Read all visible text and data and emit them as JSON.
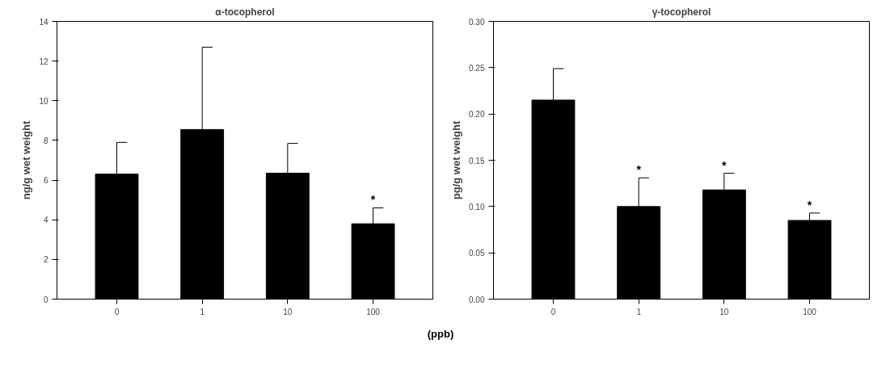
{
  "chart_data": [
    {
      "type": "bar",
      "title": "α-tocopherol",
      "ylabel": "ng/g wet weight",
      "xlabel": "(ppb)",
      "categories": [
        "0",
        "1",
        "10",
        "100"
      ],
      "values": [
        6.3,
        8.55,
        6.35,
        3.8
      ],
      "color": "#000000",
      "errors": [
        [
          6.3,
          7.9
        ],
        [
          8.55,
          12.7
        ],
        [
          6.35,
          7.85
        ],
        [
          3.8,
          4.6
        ]
      ],
      "ylim": [
        0,
        14
      ],
      "yticks": [
        0,
        2,
        4,
        6,
        8,
        10,
        12,
        14
      ],
      "annotations": [
        {
          "text": "*",
          "x": "100",
          "y": 4.6
        }
      ],
      "grid": false
    },
    {
      "type": "bar",
      "title": "γ-tocopherol",
      "ylabel": "pg/g wet weight",
      "categories": [
        "0",
        "1",
        "10",
        "100"
      ],
      "values": [
        0.215,
        0.1,
        0.118,
        0.085
      ],
      "color": "#000000",
      "errors": [
        [
          0.215,
          0.249
        ],
        [
          0.1,
          0.131
        ],
        [
          0.118,
          0.136
        ],
        [
          0.085,
          0.093
        ]
      ],
      "ylim": [
        0,
        0.3
      ],
      "yticks": [
        {
          "value": 0,
          "label": "0.00"
        },
        {
          "value": 0.05,
          "label": "0.05"
        },
        {
          "value": 0.1,
          "label": "0.10"
        },
        {
          "value": 0.15,
          "label": "0.15"
        },
        {
          "value": 0.2,
          "label": "0.20"
        },
        {
          "value": 0.25,
          "label": "0.25"
        },
        {
          "value": 0.3,
          "label": "0.30"
        }
      ],
      "annotations": [
        {
          "text": "*",
          "x": "1",
          "y": 0.131
        },
        {
          "text": "*",
          "x": "10",
          "y": 0.136
        },
        {
          "text": "*",
          "x": "100",
          "y": 0.093
        }
      ],
      "grid": false
    }
  ]
}
